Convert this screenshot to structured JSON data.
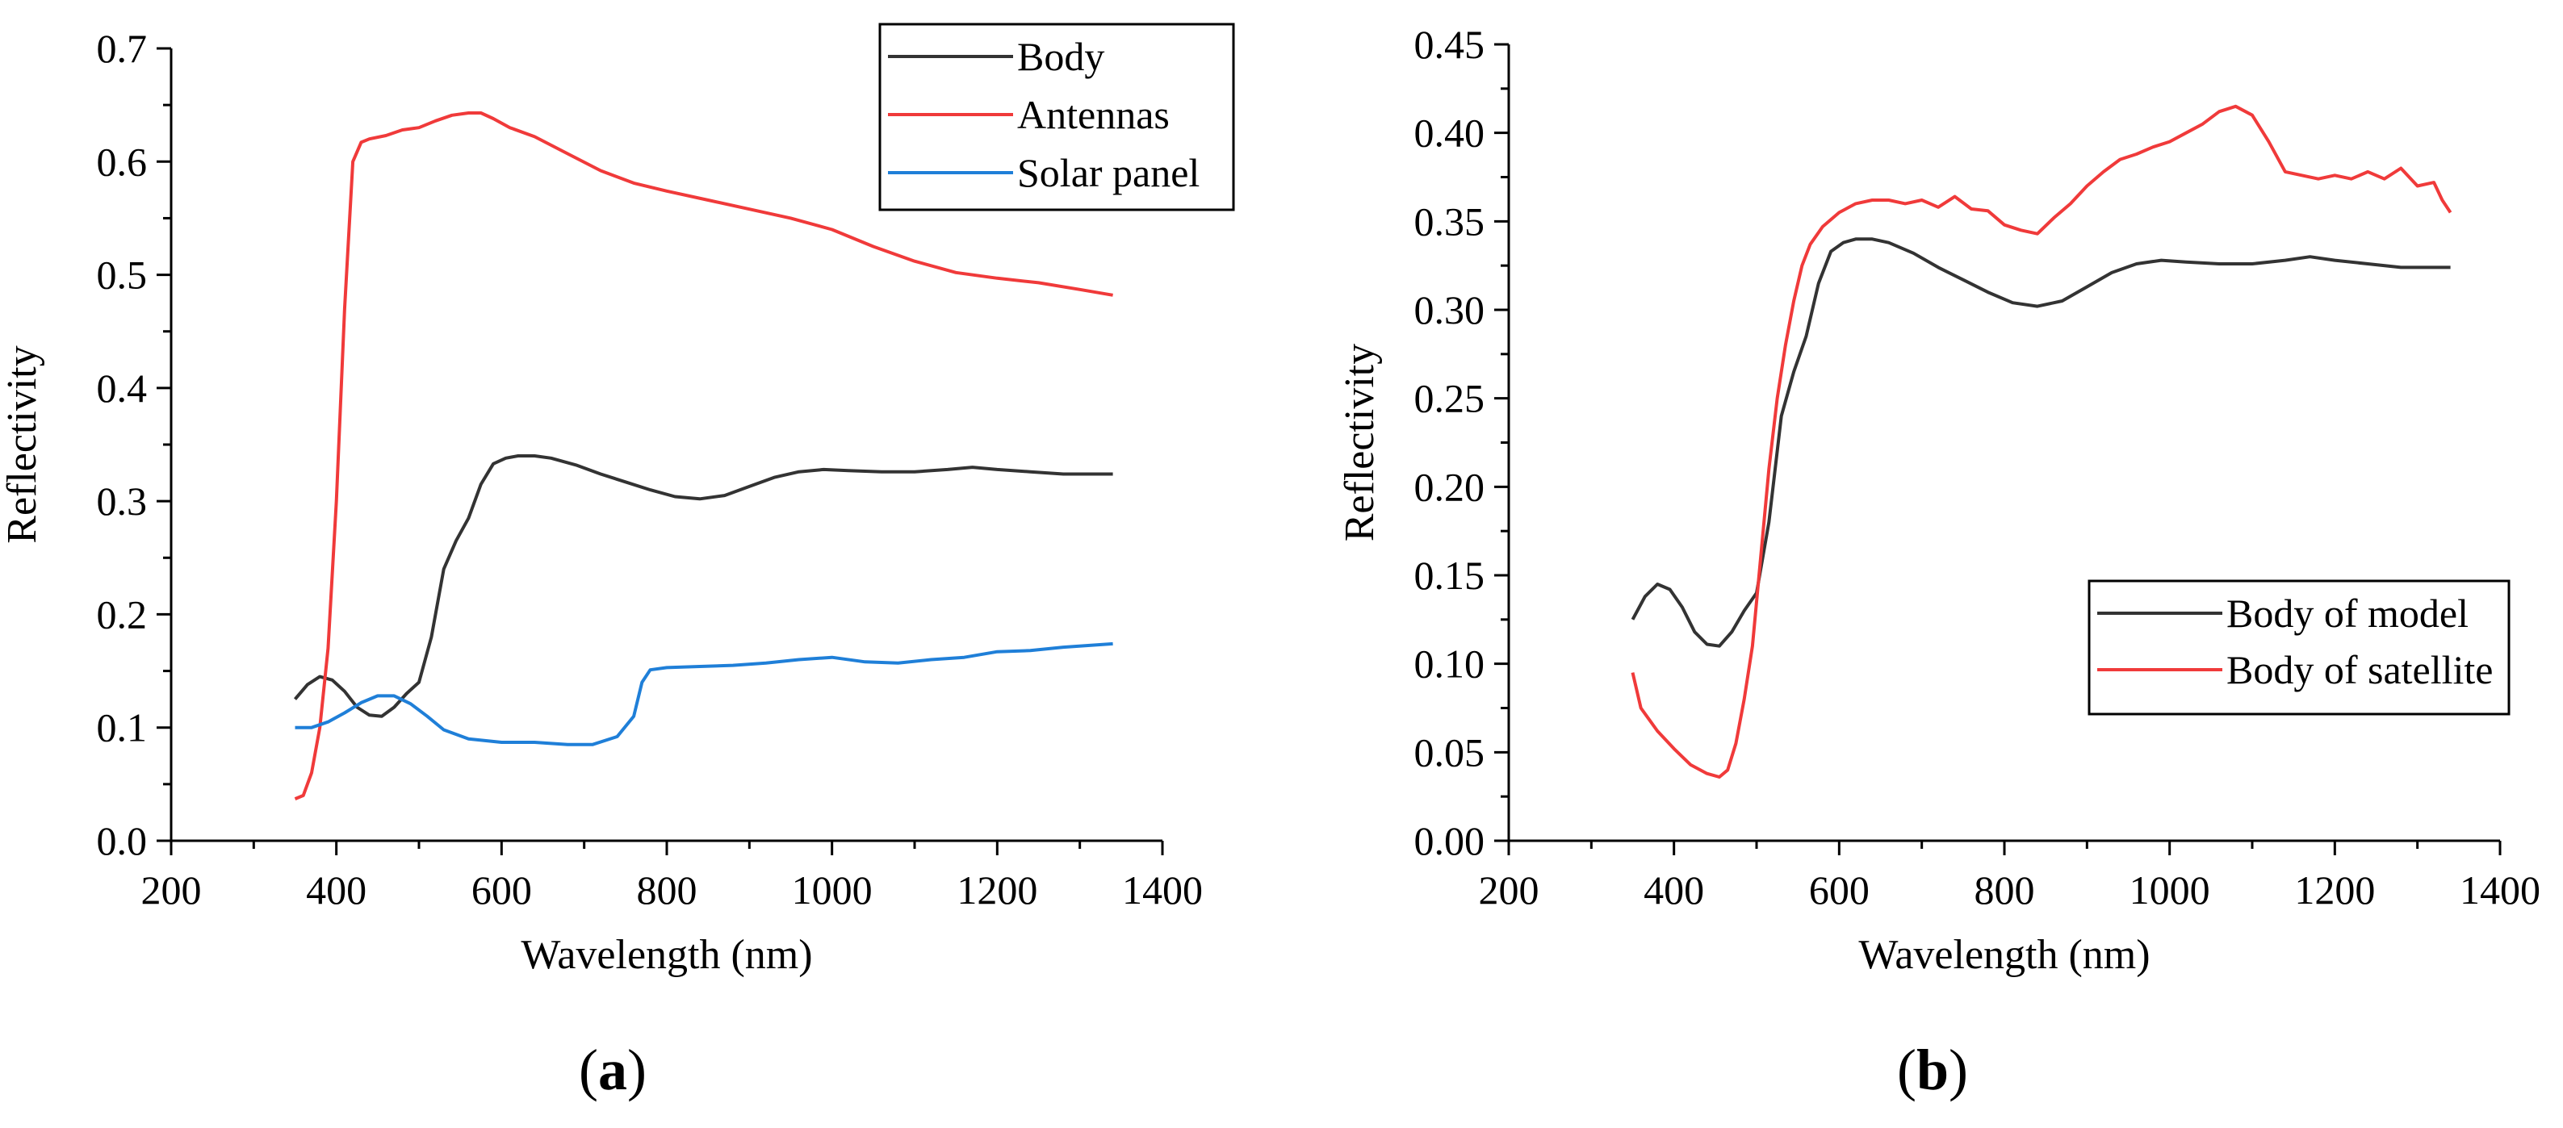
{
  "chart_data": [
    {
      "type": "line",
      "panel": "a",
      "caption": "a",
      "xlabel": "Wavelength (nm)",
      "ylabel": "Reflectivity",
      "xlim": [
        200,
        1400
      ],
      "ylim": [
        0.0,
        0.7
      ],
      "xticks": [
        200,
        400,
        600,
        800,
        1000,
        1200,
        1400
      ],
      "xtick_labels": [
        "200",
        "400",
        "600",
        "800",
        "1000",
        "1200",
        "1400"
      ],
      "yticks": [
        0.0,
        0.1,
        0.2,
        0.3,
        0.4,
        0.5,
        0.6,
        0.7
      ],
      "ytick_labels": [
        "0.0",
        "0.1",
        "0.2",
        "0.3",
        "0.4",
        "0.5",
        "0.6",
        "0.7"
      ],
      "legend_position": "top-right",
      "series": [
        {
          "name": "Body",
          "color": "#333333",
          "x": [
            350,
            365,
            380,
            395,
            410,
            425,
            440,
            455,
            470,
            485,
            500,
            515,
            530,
            545,
            560,
            575,
            590,
            605,
            620,
            640,
            660,
            690,
            720,
            750,
            780,
            810,
            840,
            870,
            900,
            930,
            960,
            990,
            1020,
            1060,
            1100,
            1140,
            1170,
            1200,
            1240,
            1280,
            1340
          ],
          "y": [
            0.125,
            0.138,
            0.145,
            0.142,
            0.132,
            0.118,
            0.111,
            0.11,
            0.118,
            0.13,
            0.14,
            0.18,
            0.24,
            0.265,
            0.285,
            0.315,
            0.333,
            0.338,
            0.34,
            0.34,
            0.338,
            0.332,
            0.324,
            0.317,
            0.31,
            0.304,
            0.302,
            0.305,
            0.313,
            0.321,
            0.326,
            0.328,
            0.327,
            0.326,
            0.326,
            0.328,
            0.33,
            0.328,
            0.326,
            0.324,
            0.324
          ]
        },
        {
          "name": "Antennas",
          "color": "#f03a3a",
          "x": [
            350,
            360,
            370,
            380,
            390,
            400,
            410,
            420,
            430,
            440,
            460,
            480,
            500,
            520,
            540,
            560,
            575,
            590,
            610,
            640,
            680,
            720,
            760,
            800,
            850,
            900,
            950,
            1000,
            1050,
            1100,
            1150,
            1200,
            1250,
            1300,
            1340
          ],
          "y": [
            0.037,
            0.04,
            0.06,
            0.1,
            0.17,
            0.3,
            0.47,
            0.6,
            0.617,
            0.62,
            0.623,
            0.628,
            0.63,
            0.636,
            0.641,
            0.643,
            0.643,
            0.638,
            0.63,
            0.622,
            0.607,
            0.592,
            0.581,
            0.574,
            0.566,
            0.558,
            0.55,
            0.54,
            0.525,
            0.512,
            0.502,
            0.497,
            0.493,
            0.487,
            0.482
          ]
        },
        {
          "name": "Solar panel",
          "color": "#1f7fd8",
          "x": [
            350,
            370,
            390,
            410,
            430,
            450,
            470,
            490,
            510,
            530,
            560,
            600,
            640,
            680,
            710,
            740,
            760,
            770,
            780,
            800,
            840,
            880,
            920,
            960,
            1000,
            1040,
            1080,
            1120,
            1160,
            1200,
            1240,
            1280,
            1340
          ],
          "y": [
            0.1,
            0.1,
            0.105,
            0.113,
            0.122,
            0.128,
            0.128,
            0.121,
            0.11,
            0.098,
            0.09,
            0.087,
            0.087,
            0.085,
            0.085,
            0.092,
            0.11,
            0.14,
            0.151,
            0.153,
            0.154,
            0.155,
            0.157,
            0.16,
            0.162,
            0.158,
            0.157,
            0.16,
            0.162,
            0.167,
            0.168,
            0.171,
            0.174
          ]
        }
      ]
    },
    {
      "type": "line",
      "panel": "b",
      "caption": "b",
      "xlabel": "Wavelength (nm)",
      "ylabel": "Reflectivity",
      "xlim": [
        200,
        1400
      ],
      "ylim": [
        0.0,
        0.45
      ],
      "xticks": [
        200,
        400,
        600,
        800,
        1000,
        1200,
        1400
      ],
      "xtick_labels": [
        "200",
        "400",
        "600",
        "800",
        "1000",
        "1200",
        "1400"
      ],
      "yticks": [
        0.0,
        0.05,
        0.1,
        0.15,
        0.2,
        0.25,
        0.3,
        0.35,
        0.4,
        0.45
      ],
      "ytick_labels": [
        "0.00",
        "0.05",
        "0.10",
        "0.15",
        "0.20",
        "0.25",
        "0.30",
        "0.35",
        "0.40",
        "0.45"
      ],
      "legend_position": "center-right",
      "series": [
        {
          "name": "Body of model",
          "color": "#333333",
          "x": [
            350,
            365,
            380,
            395,
            410,
            425,
            440,
            455,
            470,
            485,
            500,
            515,
            530,
            545,
            560,
            575,
            590,
            605,
            620,
            640,
            660,
            690,
            720,
            750,
            780,
            810,
            840,
            870,
            900,
            930,
            960,
            990,
            1020,
            1060,
            1100,
            1140,
            1170,
            1200,
            1240,
            1280,
            1340
          ],
          "y": [
            0.125,
            0.138,
            0.145,
            0.142,
            0.132,
            0.118,
            0.111,
            0.11,
            0.118,
            0.13,
            0.14,
            0.18,
            0.24,
            0.265,
            0.285,
            0.315,
            0.333,
            0.338,
            0.34,
            0.34,
            0.338,
            0.332,
            0.324,
            0.317,
            0.31,
            0.304,
            0.302,
            0.305,
            0.313,
            0.321,
            0.326,
            0.328,
            0.327,
            0.326,
            0.326,
            0.328,
            0.33,
            0.328,
            0.326,
            0.324,
            0.324
          ]
        },
        {
          "name": "Body of satellite",
          "color": "#f03a3a",
          "x": [
            350,
            360,
            380,
            400,
            420,
            440,
            455,
            465,
            475,
            485,
            495,
            505,
            515,
            525,
            535,
            545,
            555,
            565,
            580,
            600,
            620,
            640,
            660,
            680,
            700,
            720,
            740,
            760,
            780,
            800,
            820,
            840,
            860,
            880,
            900,
            920,
            940,
            960,
            980,
            1000,
            1020,
            1040,
            1060,
            1080,
            1100,
            1120,
            1140,
            1160,
            1180,
            1200,
            1220,
            1240,
            1260,
            1280,
            1300,
            1320,
            1330,
            1340
          ],
          "y": [
            0.095,
            0.075,
            0.062,
            0.052,
            0.043,
            0.038,
            0.036,
            0.04,
            0.055,
            0.08,
            0.11,
            0.16,
            0.21,
            0.25,
            0.28,
            0.305,
            0.325,
            0.337,
            0.347,
            0.355,
            0.36,
            0.362,
            0.362,
            0.36,
            0.362,
            0.358,
            0.364,
            0.357,
            0.356,
            0.348,
            0.345,
            0.343,
            0.352,
            0.36,
            0.37,
            0.378,
            0.385,
            0.388,
            0.392,
            0.395,
            0.4,
            0.405,
            0.412,
            0.415,
            0.41,
            0.395,
            0.378,
            0.376,
            0.374,
            0.376,
            0.374,
            0.378,
            0.374,
            0.38,
            0.37,
            0.372,
            0.362,
            0.355
          ]
        }
      ]
    }
  ]
}
